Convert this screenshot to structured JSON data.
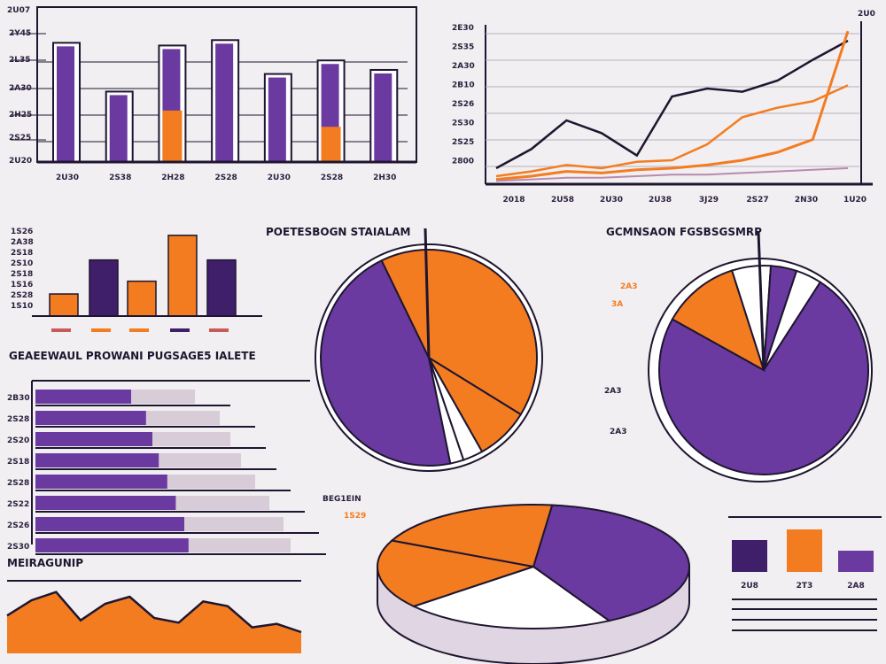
{
  "colors": {
    "purple": "#6a3aa0",
    "dark_purple": "#3f1f6a",
    "orange": "#f47c20",
    "lavender": "#d7ccd8",
    "ink": "#1e1630",
    "background": "#f1eff1"
  },
  "titles": {
    "top_right_corner": "2U0",
    "top_left_corner": "2U07",
    "middle_pie": "POETESBOGN STAIALAM",
    "right_pie": "GCMNSAON FGSBSGSMRP",
    "horizontal_bars": "GEAEEWAUL PROWANI PUGSAGE5 IALETE",
    "area_chart": "MEIRAGUNIP",
    "bottom_pie": "BEG1EIN",
    "bottom_pie_note": "1S29",
    "right_pie_note_a": "2A3",
    "right_pie_note_b": "3A",
    "right_pie_note_c": "2A3",
    "right_pie_note_d": "2A3"
  },
  "chart_data": [
    {
      "type": "bar",
      "name": "top-left-grouped-bars",
      "categories": [
        "2U30",
        "2S38",
        "2H28",
        "2S28",
        "2U30",
        "2S28",
        "2H30"
      ],
      "y_tick_labels": [
        "2Y45",
        "2L35",
        "2A30",
        "2H25",
        "2S25",
        "2U20"
      ],
      "series": [
        {
          "values": [
            88,
            52,
            86,
            90,
            65,
            75,
            68
          ]
        },
        {
          "values": [
            0,
            0,
            38,
            0,
            0,
            26,
            0
          ]
        }
      ],
      "ylim": [
        0,
        100
      ]
    },
    {
      "type": "line",
      "name": "top-right-lines",
      "x_tick_labels": [
        "2018",
        "2U58",
        "2U30",
        "2U38",
        "3J29",
        "2S27",
        "2N30",
        "1U20"
      ],
      "y_tick_labels": [
        "2E30",
        "2S35",
        "2A30",
        "2B10",
        "2S26",
        "2S30",
        "2S25",
        "2800"
      ],
      "x": [
        0,
        1,
        2,
        3,
        4,
        5,
        6,
        7,
        8,
        9,
        10
      ],
      "series": [
        {
          "values": [
            10,
            22,
            40,
            32,
            18,
            55,
            60,
            58,
            65,
            78,
            90
          ]
        },
        {
          "values": [
            5,
            8,
            12,
            10,
            14,
            15,
            25,
            42,
            48,
            52,
            62
          ]
        },
        {
          "values": [
            3,
            5,
            8,
            7,
            9,
            10,
            12,
            15,
            20,
            28,
            96
          ]
        },
        {
          "values": [
            2,
            3,
            4,
            4,
            5,
            6,
            6,
            7,
            8,
            9,
            10
          ]
        }
      ],
      "ylim": [
        0,
        100
      ]
    },
    {
      "type": "bar",
      "name": "middle-left-bars",
      "y_tick_labels": [
        "1S26",
        "2A38",
        "2S18",
        "2S10",
        "2S18",
        "1S16",
        "2S28",
        "1S10"
      ],
      "values": [
        26,
        66,
        41,
        95,
        66
      ],
      "ylim": [
        0,
        100
      ]
    },
    {
      "type": "pie",
      "name": "middle-pie",
      "values": [
        46,
        41,
        8,
        3,
        2
      ]
    },
    {
      "type": "pie",
      "name": "right-pie",
      "values": [
        74,
        12,
        6,
        4,
        4
      ]
    },
    {
      "type": "bar",
      "name": "horizontal-bars",
      "orientation": "horizontal",
      "categories": [
        "2B30",
        "2S28",
        "2S20",
        "2S18",
        "2S28",
        "2S22",
        "2S26",
        "2S30"
      ],
      "values": [
        45,
        52,
        55,
        58,
        62,
        66,
        70,
        72
      ],
      "xlim": [
        0,
        100
      ]
    },
    {
      "type": "area",
      "name": "area-chart",
      "x": [
        0,
        1,
        2,
        3,
        4,
        5,
        6,
        7,
        8,
        9,
        10,
        11,
        12
      ],
      "values": [
        32,
        45,
        52,
        28,
        42,
        48,
        30,
        26,
        44,
        40,
        22,
        25,
        18
      ],
      "ylim": [
        0,
        60
      ]
    },
    {
      "type": "pie",
      "name": "bottom-3d-pie",
      "values": [
        40,
        22,
        18,
        20
      ]
    },
    {
      "type": "bar",
      "name": "bottom-right-bars",
      "categories": [
        "2U8",
        "2T3",
        "2A8"
      ],
      "values": [
        60,
        80,
        40
      ],
      "ylim": [
        0,
        100
      ]
    }
  ]
}
